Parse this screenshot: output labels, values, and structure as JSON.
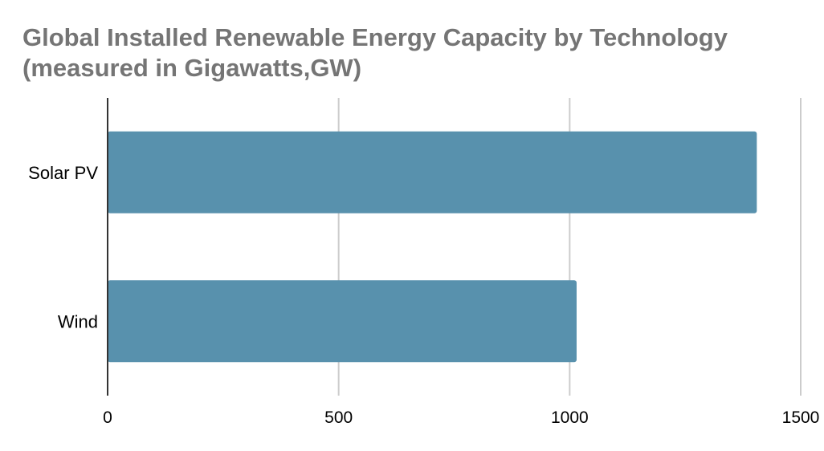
{
  "chart_data": {
    "type": "bar",
    "orientation": "horizontal",
    "title_lines": [
      "Global Installed Renewable Energy Capacity by Technology",
      "(measured in Gigawatts,GW)"
    ],
    "categories": [
      "Solar PV",
      "Wind"
    ],
    "values": [
      1405,
      1015
    ],
    "xlim": [
      0,
      1500
    ],
    "xticks": [
      0,
      500,
      1000,
      1500
    ],
    "grid": true,
    "legend": "none",
    "bar_color": "#5891ad",
    "grid_color": "#cccccc",
    "axis_color": "#333333",
    "title_color": "#757575"
  }
}
